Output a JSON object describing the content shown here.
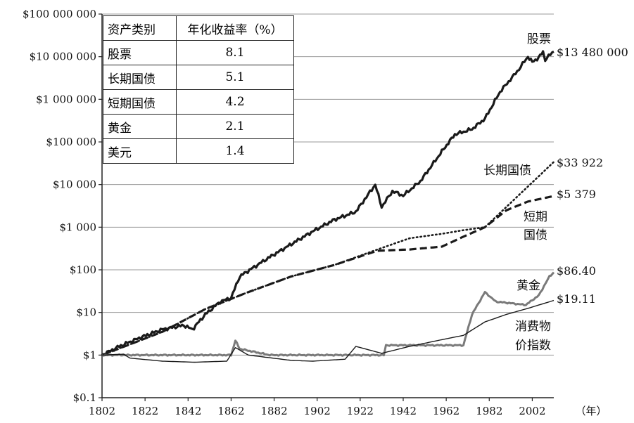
{
  "chart_data": {
    "type": "line",
    "y_scale": "log",
    "ylim": [
      0.1,
      100000000
    ],
    "xlim": [
      1802,
      2012
    ],
    "x_unit_label": "（年）",
    "x_ticks": [
      "1802",
      "1822",
      "1842",
      "1862",
      "1882",
      "1902",
      "1922",
      "1942",
      "1962",
      "1982",
      "2002"
    ],
    "y_ticks": [
      {
        "value": 100000000,
        "label": "$100 000 000"
      },
      {
        "value": 10000000,
        "label": "$10 000 000"
      },
      {
        "value": 1000000,
        "label": "$1 000 000"
      },
      {
        "value": 100000,
        "label": "$100 000"
      },
      {
        "value": 10000,
        "label": "$10 000"
      },
      {
        "value": 1000,
        "label": "$1 000"
      },
      {
        "value": 100,
        "label": "$100"
      },
      {
        "value": 10,
        "label": "$10"
      },
      {
        "value": 1,
        "label": "$1"
      },
      {
        "value": 0.1,
        "label": "$0.1"
      }
    ],
    "grid": true,
    "series": [
      {
        "name": "股票",
        "end_label": "$13 480 000",
        "color": "#1a1a1a",
        "style": "solid-thick",
        "points": [
          [
            1802,
            1
          ],
          [
            1810,
            1.6
          ],
          [
            1820,
            2.6
          ],
          [
            1830,
            4
          ],
          [
            1840,
            5
          ],
          [
            1844,
            4
          ],
          [
            1850,
            9
          ],
          [
            1857,
            18
          ],
          [
            1862,
            22
          ],
          [
            1866,
            70
          ],
          [
            1872,
            110
          ],
          [
            1880,
            200
          ],
          [
            1890,
            400
          ],
          [
            1900,
            800
          ],
          [
            1910,
            1500
          ],
          [
            1920,
            2300
          ],
          [
            1929,
            10000
          ],
          [
            1932,
            3000
          ],
          [
            1937,
            7000
          ],
          [
            1942,
            5500
          ],
          [
            1950,
            12000
          ],
          [
            1960,
            60000
          ],
          [
            1966,
            150000
          ],
          [
            1974,
            200000
          ],
          [
            1980,
            350000
          ],
          [
            1987,
            1500000
          ],
          [
            1995,
            4500000
          ],
          [
            2000,
            10000000
          ],
          [
            2002,
            7500000
          ],
          [
            2005,
            9500000
          ],
          [
            2007,
            13000000
          ],
          [
            2008,
            8500000
          ],
          [
            2012,
            13480000
          ]
        ]
      },
      {
        "name": "长期国债",
        "end_label": "$33 922",
        "color": "#1a1a1a",
        "style": "dotted",
        "points": [
          [
            1802,
            1
          ],
          [
            1830,
            3.5
          ],
          [
            1850,
            12
          ],
          [
            1870,
            30
          ],
          [
            1890,
            70
          ],
          [
            1910,
            130
          ],
          [
            1930,
            300
          ],
          [
            1945,
            550
          ],
          [
            1960,
            700
          ],
          [
            1970,
            850
          ],
          [
            1980,
            1000
          ],
          [
            1990,
            3000
          ],
          [
            2000,
            9000
          ],
          [
            2012,
            33922
          ]
        ]
      },
      {
        "name": "短期国债",
        "end_label": "$5 379",
        "color": "#1a1a1a",
        "style": "dashed",
        "points": [
          [
            1802,
            1
          ],
          [
            1830,
            3.5
          ],
          [
            1850,
            12
          ],
          [
            1870,
            30
          ],
          [
            1890,
            70
          ],
          [
            1910,
            130
          ],
          [
            1930,
            280
          ],
          [
            1945,
            300
          ],
          [
            1960,
            350
          ],
          [
            1970,
            600
          ],
          [
            1980,
            1000
          ],
          [
            1990,
            2500
          ],
          [
            2000,
            4000
          ],
          [
            2012,
            5379
          ]
        ]
      },
      {
        "name": "黄金",
        "end_label": "$86.40",
        "color": "#7a7a7a",
        "style": "solid",
        "points": [
          [
            1802,
            1
          ],
          [
            1862,
            1
          ],
          [
            1864,
            2.2
          ],
          [
            1866,
            1.4
          ],
          [
            1880,
            1
          ],
          [
            1933,
            1
          ],
          [
            1934,
            1.7
          ],
          [
            1970,
            1.7
          ],
          [
            1974,
            9
          ],
          [
            1980,
            30
          ],
          [
            1985,
            18
          ],
          [
            1999,
            15
          ],
          [
            2005,
            25
          ],
          [
            2010,
            70
          ],
          [
            2012,
            86.4
          ]
        ]
      },
      {
        "name": "消费物价指数",
        "end_label": "$19.11",
        "color": "#1a1a1a",
        "style": "solid-thin",
        "points": [
          [
            1802,
            1
          ],
          [
            1812,
            1.05
          ],
          [
            1815,
            0.85
          ],
          [
            1830,
            0.72
          ],
          [
            1845,
            0.68
          ],
          [
            1860,
            0.72
          ],
          [
            1864,
            1.5
          ],
          [
            1870,
            1.0
          ],
          [
            1890,
            0.75
          ],
          [
            1900,
            0.72
          ],
          [
            1915,
            0.8
          ],
          [
            1920,
            1.6
          ],
          [
            1932,
            1.1
          ],
          [
            1945,
            1.6
          ],
          [
            1960,
            2.3
          ],
          [
            1970,
            2.9
          ],
          [
            1980,
            6
          ],
          [
            1990,
            9
          ],
          [
            2000,
            12.5
          ],
          [
            2012,
            19.11
          ]
        ]
      }
    ],
    "table": {
      "headers": [
        "资产类别",
        "年化收益率（%）"
      ],
      "rows": [
        [
          "股票",
          "8.1"
        ],
        [
          "长期国债",
          "5.1"
        ],
        [
          "短期国债",
          "4.2"
        ],
        [
          "黄金",
          "2.1"
        ],
        [
          "美元",
          "1.4"
        ]
      ]
    },
    "annotations": [
      {
        "series": "股票",
        "text": "股票"
      },
      {
        "series": "长期国债",
        "text": "长期国债"
      },
      {
        "series": "短期国债",
        "lines": [
          "短期",
          "国债"
        ]
      },
      {
        "series": "黄金",
        "text": "黄金"
      },
      {
        "series": "消费物价指数",
        "lines": [
          "消费物",
          "价指数"
        ]
      }
    ]
  }
}
